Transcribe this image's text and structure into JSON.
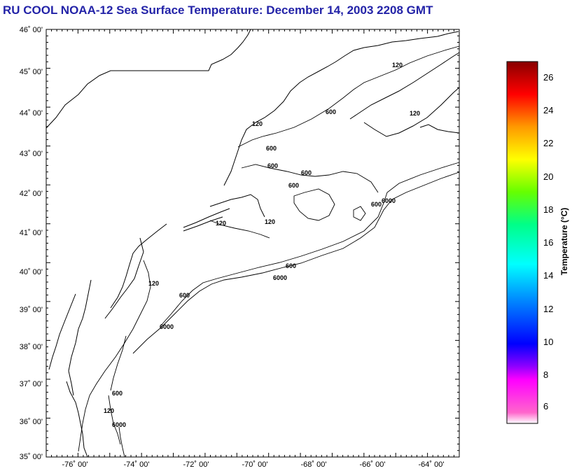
{
  "title": "RU COOL  NOAA-12  Sea Surface Temperature:  December 14, 2003 2208 GMT",
  "map": {
    "lat_range": [
      35,
      46
    ],
    "lon_range": [
      -77,
      -64
    ],
    "lat_ticks": [
      "35˚ 00'",
      "36˚ 00'",
      "37˚ 00'",
      "38˚ 00'",
      "39˚ 00'",
      "40˚ 00'",
      "41˚ 00'",
      "42˚ 00'",
      "43˚ 00'",
      "44˚ 00'",
      "45˚ 00'",
      "46˚ 00'"
    ],
    "lon_ticks": [
      "-76˚ 00'",
      "-74˚ 00'",
      "-72˚ 00'",
      "-70˚ 00'",
      "-68˚ 00'",
      "-66˚ 00'",
      "-64˚ 00'"
    ],
    "contour_labels": [
      "120",
      "600",
      "6000"
    ]
  },
  "colorbar": {
    "title": "Temperature (°C)",
    "range": [
      5,
      27
    ],
    "ticks": [
      "6",
      "8",
      "10",
      "12",
      "14",
      "16",
      "18",
      "20",
      "22",
      "24",
      "26"
    ],
    "colors": [
      "#ffffff",
      "#ff66cc",
      "#ff00ff",
      "#8800ff",
      "#0000ff",
      "#0088ff",
      "#00ffff",
      "#00ff88",
      "#66ff00",
      "#ffff00",
      "#ff9900",
      "#ff0000",
      "#cc0000",
      "#880000"
    ]
  }
}
